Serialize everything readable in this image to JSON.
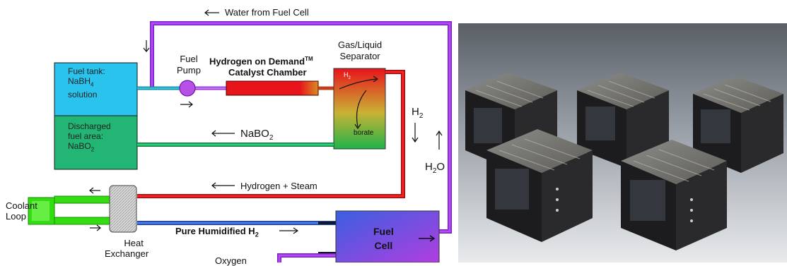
{
  "diagram": {
    "water_from_fuel_cell": "Water from Fuel Cell",
    "fuel_tank": [
      "Fuel tank:",
      "NaBH",
      "4",
      "solution"
    ],
    "discharged": [
      "Discharged",
      "fuel area:",
      "NaBO",
      "2"
    ],
    "fuel_pump": [
      "Fuel",
      "Pump"
    ],
    "catalyst": [
      "Hydrogen on Demand",
      "TM",
      "Catalyst Chamber"
    ],
    "separator": [
      "Gas/Liquid",
      "Separator"
    ],
    "h2_small": "H",
    "borate": "borate",
    "nabo2_flow": "NaBO",
    "h2_side": "H",
    "h2o_side": "H",
    "h2o_o": "O",
    "hydrogen_steam": "Hydrogen + Steam",
    "coolant_loop": [
      "Coolant",
      "Loop"
    ],
    "heat_exchanger": [
      "Heat",
      "Exchanger"
    ],
    "pure_humidified": "Pure Humidified H",
    "fuel_cell": [
      "Fuel",
      "Cell"
    ],
    "oxygen": "Oxygen",
    "sub2": "2"
  },
  "photo": {
    "description_icon": "battery-module-photo"
  },
  "colors": {
    "purple": "#8a2be2",
    "red": "#e8141c",
    "green": "#22a55a",
    "blue": "#2f5fd0",
    "cyan": "#29c3ee",
    "tank_green": "#22b573",
    "coolant_green": "#33dd11"
  }
}
